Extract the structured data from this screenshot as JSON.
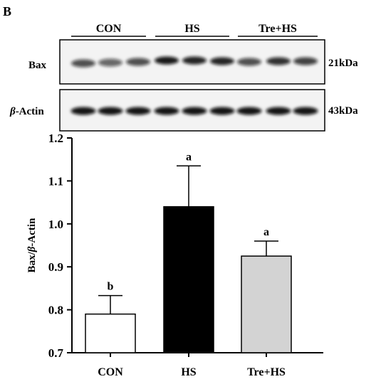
{
  "panel_label": "B",
  "blot": {
    "groups": [
      "CON",
      "HS",
      "Tre+HS"
    ],
    "rows": [
      {
        "label": "Bax",
        "label_italic_prefix": "",
        "size": "21kDa"
      },
      {
        "label": "-Actin",
        "label_italic_prefix": "β",
        "size": "43kDa"
      }
    ]
  },
  "chart_data": {
    "type": "bar",
    "categories": [
      "CON",
      "HS",
      "Tre+HS"
    ],
    "values": [
      0.79,
      1.04,
      0.925
    ],
    "error_upper": [
      0.833,
      1.135,
      0.96
    ],
    "significance": [
      "b",
      "a",
      "a"
    ],
    "bar_colors": [
      "#ffffff",
      "#000000",
      "#d3d3d3"
    ],
    "ylabel_prefix": "Bax/",
    "ylabel_italic": "β",
    "ylabel_suffix": "-Actin",
    "ylim": [
      0.7,
      1.2
    ],
    "yticks": [
      "0.7",
      "0.8",
      "0.9",
      "1.0",
      "1.1",
      "1.2"
    ],
    "grid": false
  }
}
